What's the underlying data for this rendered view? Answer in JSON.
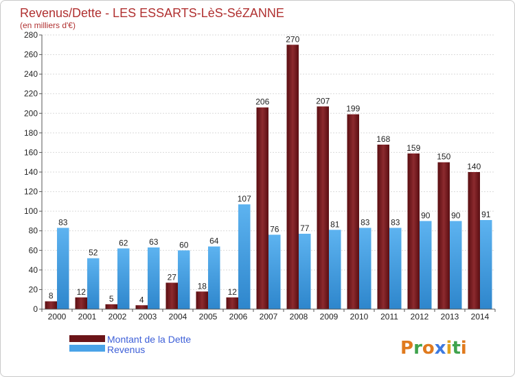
{
  "chart_data": {
    "type": "bar",
    "title": "Revenus/Dette - LES ESSARTS-LèS-SéZANNE",
    "subtitle": "(en milliers d'€)",
    "categories": [
      "2000",
      "2001",
      "2002",
      "2003",
      "2004",
      "2005",
      "2006",
      "2007",
      "2008",
      "2009",
      "2010",
      "2011",
      "2012",
      "2013",
      "2014"
    ],
    "series": [
      {
        "name": "Montant de la Dette",
        "color": "#7a1a1e",
        "values": [
          8,
          12,
          5,
          4,
          27,
          18,
          12,
          206,
          270,
          207,
          199,
          168,
          159,
          150,
          140
        ]
      },
      {
        "name": "Revenus",
        "color": "#4aa3e8",
        "values": [
          83,
          52,
          62,
          63,
          60,
          64,
          107,
          76,
          77,
          81,
          83,
          83,
          90,
          90,
          91
        ]
      }
    ],
    "ylim": [
      0,
      280
    ],
    "yticks": [
      0,
      20,
      40,
      60,
      80,
      100,
      120,
      140,
      160,
      180,
      200,
      220,
      240,
      260,
      280
    ],
    "grid": true,
    "legend_position": "bottom-left",
    "xlabel": "",
    "ylabel": ""
  },
  "logo": {
    "text": "Proxiti"
  }
}
